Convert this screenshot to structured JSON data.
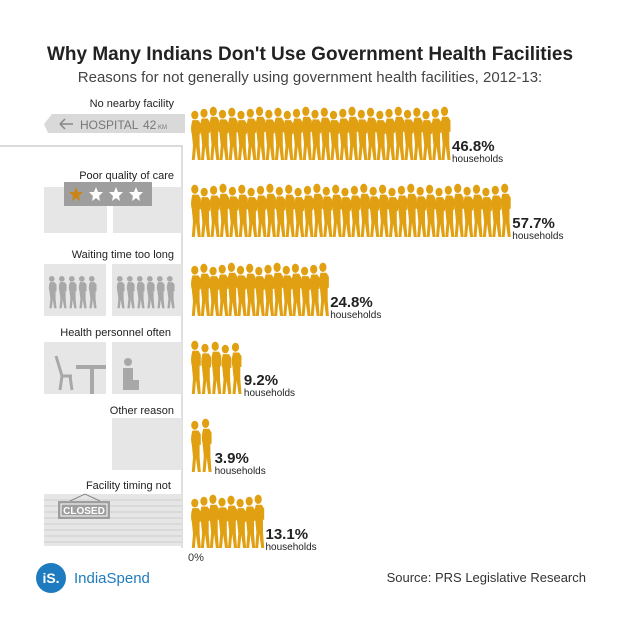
{
  "header": {
    "title": "Why Many Indians Don't Use Government Health Facilities",
    "subtitle": "Reasons for not generally using government health facilities, 2012-13:"
  },
  "icons": {
    "hospital_sign_text": "HOSPITAL",
    "hospital_sign_distance": "42",
    "hospital_sign_unit": "KM",
    "closed_sign_text": "CLOSED"
  },
  "chart_data": {
    "type": "bar",
    "title": "Why Many Indians Don't Use Government Health Facilities",
    "subtitle": "Reasons for not generally using government health facilities, 2012-13:",
    "categories": [
      "No nearby facility",
      "Poor quality of care",
      "Waiting time too long",
      "Health personnel often absent",
      "Other reason",
      "Facility timing not convenient"
    ],
    "values": [
      46.8,
      57.7,
      24.8,
      9.2,
      3.9,
      13.1
    ],
    "value_labels": [
      "46.8%",
      "57.7%",
      "24.8%",
      "9.2%",
      "3.9%",
      "13.1%"
    ],
    "value_unit_label": "households",
    "axis_label": "0%",
    "xlim": [
      0,
      60
    ],
    "orientation": "horizontal",
    "mark": "walking-person pictograph",
    "color": "#e0a012"
  },
  "footer": {
    "logo_mark": "iS.",
    "logo_text": "IndiaSpend",
    "source": "Source: PRS Legislative Research"
  },
  "colors": {
    "bar": "#e0a012",
    "text": "#222222",
    "icon_gray": "#d9d9d9",
    "icon_dark": "#9e9e9e",
    "star": "#c8861a",
    "brand": "#1e7bbf"
  }
}
